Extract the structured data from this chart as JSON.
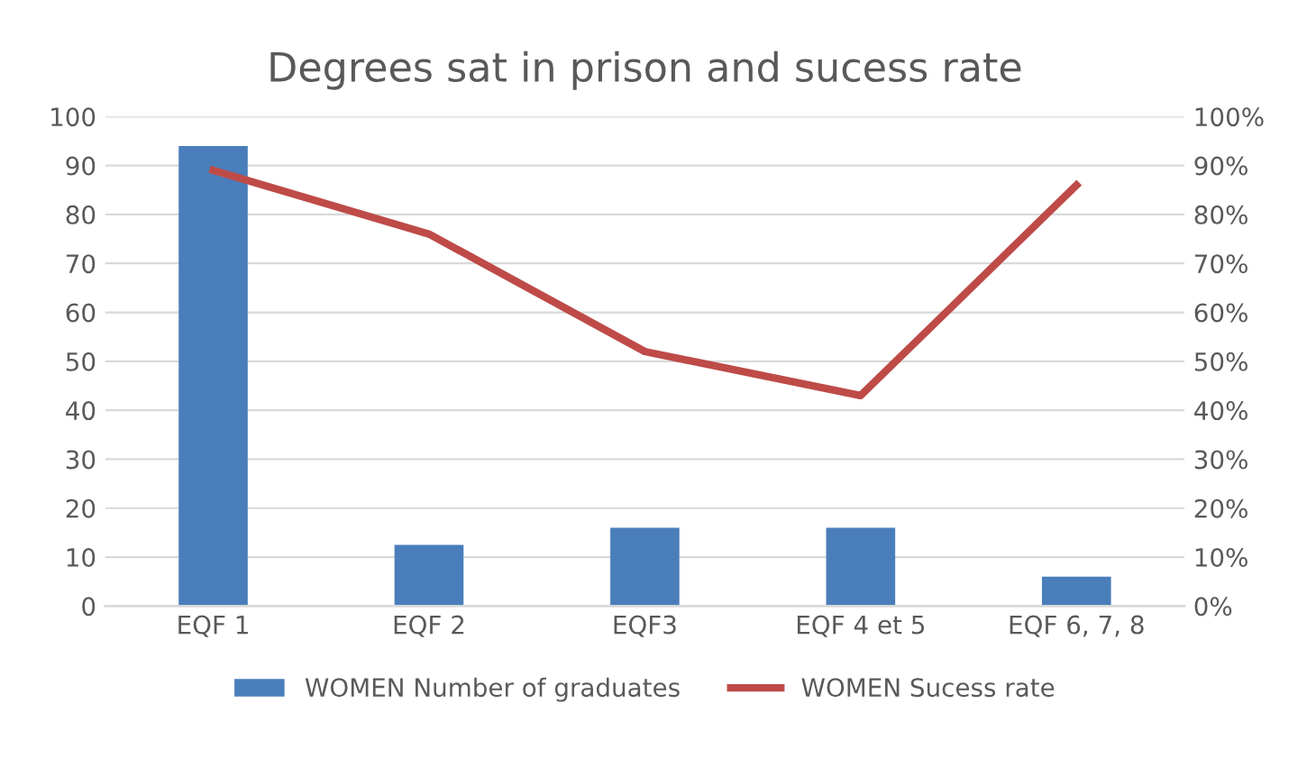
{
  "chart_data": {
    "type": "bar",
    "title": "Degrees sat in prison and sucess rate",
    "categories": [
      "EQF 1",
      "EQF 2",
      "EQF3",
      "EQF 4 et 5",
      "EQF 6, 7, 8"
    ],
    "series": [
      {
        "name": "WOMEN Number of graduates",
        "color": "#4a7ebb",
        "values": [
          94,
          12.5,
          16,
          16,
          6
        ]
      },
      {
        "name": "WOMEN Sucess rate",
        "color": "#be4b48",
        "type": "line",
        "axis": "y2",
        "values": [
          89,
          76,
          52,
          43,
          86
        ]
      }
    ],
    "ylim": [
      0,
      100
    ],
    "yticks": [
      0,
      10,
      20,
      30,
      40,
      50,
      60,
      70,
      80,
      90,
      100
    ],
    "y2lim": [
      0,
      100
    ],
    "y2ticks": [
      {
        "value": 0,
        "label": "0%"
      },
      {
        "value": 10,
        "label": "10%"
      },
      {
        "value": 20,
        "label": "20%"
      },
      {
        "value": 30,
        "label": "30%"
      },
      {
        "value": 40,
        "label": "40%"
      },
      {
        "value": 50,
        "label": "50%"
      },
      {
        "value": 60,
        "label": "60%"
      },
      {
        "value": 70,
        "label": "70%"
      },
      {
        "value": 80,
        "label": "80%"
      },
      {
        "value": 90,
        "label": "90%"
      },
      {
        "value": 100,
        "label": "100%"
      }
    ],
    "grid": "y",
    "legend": "bottom"
  }
}
